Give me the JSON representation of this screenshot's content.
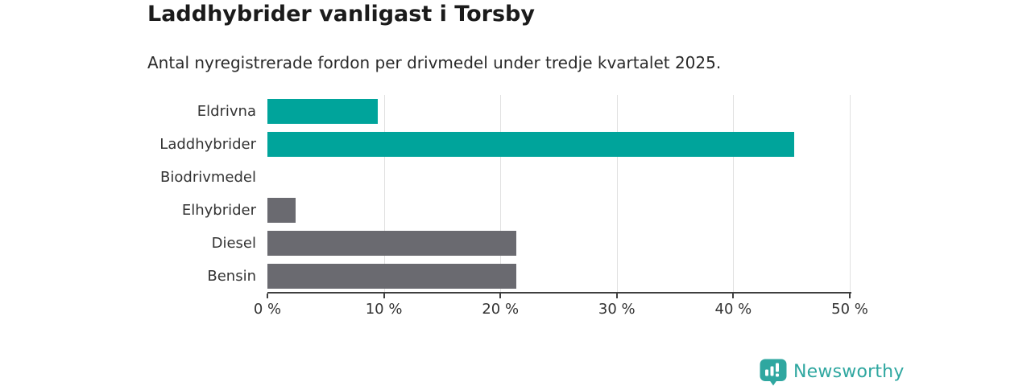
{
  "chart": {
    "title": "Laddhybrider vanligast i Torsby",
    "subtitle": "Antal nyregistrerade fordon per drivmedel under tredje kvartalet 2025."
  },
  "chart_data": {
    "type": "bar",
    "orientation": "horizontal",
    "title": "Laddhybrider vanligast i Torsby",
    "subtitle": "Antal nyregistrerade fordon per drivmedel under tredje kvartalet 2025.",
    "categories": [
      "Eldrivna",
      "Laddhybrider",
      "Biodrivmedel",
      "Elhybrider",
      "Diesel",
      "Bensin"
    ],
    "values": [
      9.5,
      45.2,
      0,
      2.4,
      21.4,
      21.4
    ],
    "unit": "%",
    "bar_colors": [
      "#00a49b",
      "#00a49b",
      "#6a6a70",
      "#6a6a70",
      "#6a6a70",
      "#6a6a70"
    ],
    "highlight_color": "#00a49b",
    "default_color": "#6a6a70",
    "xlim": [
      0,
      50
    ],
    "x_tick_values": [
      0,
      10,
      20,
      30,
      40,
      50
    ],
    "x_tick_labels": [
      "0 %",
      "10 %",
      "20 %",
      "30 %",
      "40 %",
      "50 %"
    ],
    "grid": "vertical-gridlines-on",
    "gridline_color": "#e1e1e1",
    "axis_color": "#3f3f3f",
    "legend": "none"
  },
  "branding": {
    "logo_text": "Newsworthy",
    "logo_color": "#2fa7a0",
    "logo_icon": "bar-chart-speech-bubble-icon"
  }
}
